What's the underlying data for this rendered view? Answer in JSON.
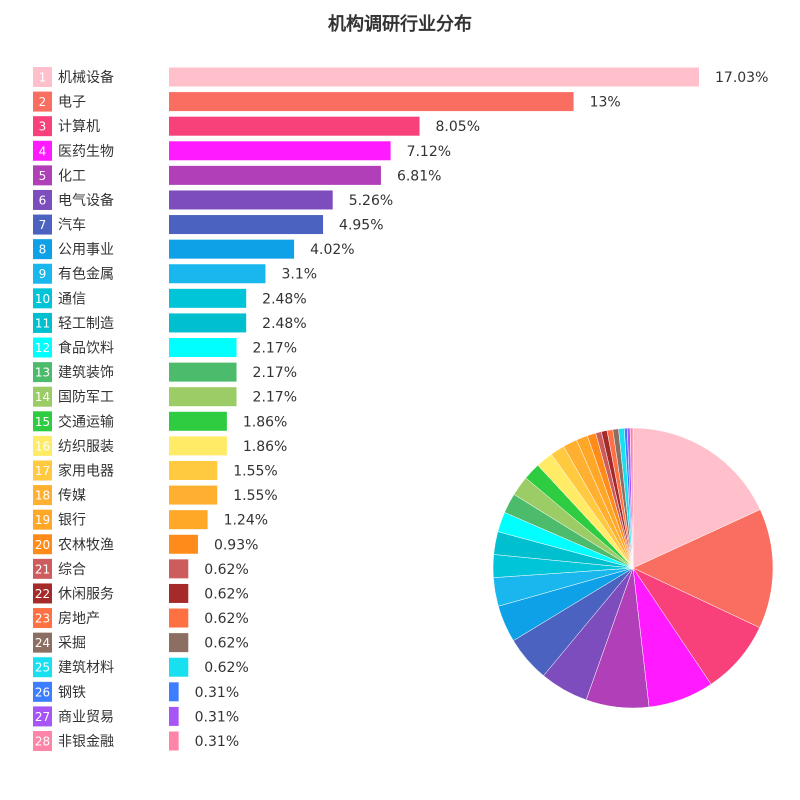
{
  "chart_data": {
    "type": "bar",
    "title": "机构调研行业分布",
    "ranks": [
      1,
      2,
      3,
      4,
      5,
      6,
      7,
      8,
      9,
      10,
      11,
      12,
      13,
      14,
      15,
      16,
      17,
      18,
      19,
      20,
      21,
      22,
      23,
      24,
      25,
      26,
      27,
      28
    ],
    "categories": [
      "机械设备",
      "电子",
      "计算机",
      "医药生物",
      "化工",
      "电气设备",
      "汽车",
      "公用事业",
      "有色金属",
      "通信",
      "轻工制造",
      "食品饮料",
      "建筑装饰",
      "国防军工",
      "交通运输",
      "纺织服装",
      "家用电器",
      "传媒",
      "银行",
      "农林牧渔",
      "综合",
      "休闲服务",
      "房地产",
      "采掘",
      "建筑材料",
      "钢铁",
      "商业贸易",
      "非银金融"
    ],
    "values": [
      17.03,
      13,
      8.05,
      7.12,
      6.81,
      5.26,
      4.95,
      4.02,
      3.1,
      2.48,
      2.48,
      2.17,
      2.17,
      2.17,
      1.86,
      1.86,
      1.55,
      1.55,
      1.24,
      0.93,
      0.62,
      0.62,
      0.62,
      0.62,
      0.62,
      0.31,
      0.31,
      0.31
    ],
    "value_labels": [
      "17.03%",
      "13%",
      "8.05%",
      "7.12%",
      "6.81%",
      "5.26%",
      "4.95%",
      "4.02%",
      "3.1%",
      "2.48%",
      "2.48%",
      "2.17%",
      "2.17%",
      "2.17%",
      "1.86%",
      "1.86%",
      "1.55%",
      "1.55%",
      "1.24%",
      "0.93%",
      "0.62%",
      "0.62%",
      "0.62%",
      "0.62%",
      "0.62%",
      "0.31%",
      "0.31%",
      "0.31%"
    ],
    "colors": [
      "#ffc0cb",
      "#fa6e61",
      "#f8417a",
      "#ff1aff",
      "#b03fb8",
      "#7d4dbd",
      "#4c62c0",
      "#0fa1e8",
      "#1ab7ef",
      "#00c4d8",
      "#00c0d0",
      "#00ffff",
      "#4cbb6b",
      "#9ccc65",
      "#2ecc40",
      "#ffeb66",
      "#ffc940",
      "#ffb030",
      "#ffa726",
      "#ff8c1a",
      "#cd5c5c",
      "#a52a2a",
      "#ff7043",
      "#8d6e63",
      "#18e0f0",
      "#3d7eff",
      "#a855f7",
      "#ff85a8"
    ],
    "inset_pie": true
  }
}
